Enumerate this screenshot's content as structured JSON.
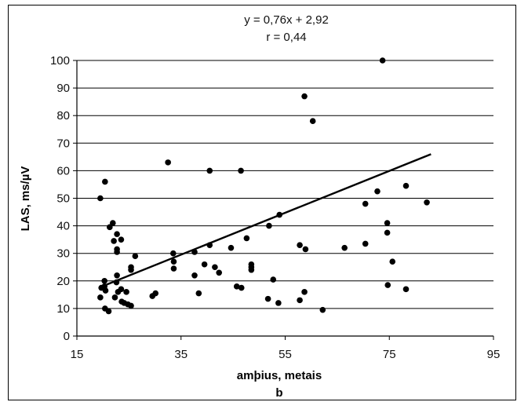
{
  "chart_data": {
    "type": "scatter",
    "title": "",
    "annotations": [
      "y = 0,76x + 2,92",
      "r = 0,44"
    ],
    "xlabel": "amþius, metais",
    "ylabel": "LAS, ms/µV",
    "caption": "b",
    "xlim": [
      15,
      95
    ],
    "ylim": [
      0,
      100
    ],
    "xticks": [
      "15",
      "35",
      "55",
      "75",
      "95"
    ],
    "yticks": [
      "0",
      "10",
      "20",
      "30",
      "40",
      "50",
      "60",
      "70",
      "80",
      "90",
      "100"
    ],
    "grid": "horizontal",
    "legend": "none",
    "trendline": {
      "slope": 0.76,
      "intercept": 2.92,
      "x_start": 20.7,
      "x_end": 83
    },
    "series": [
      {
        "color": "#000000",
        "points": [
          [
            19.5,
            50
          ],
          [
            19.5,
            14
          ],
          [
            19.7,
            17.5
          ],
          [
            20.4,
            56
          ],
          [
            20.3,
            20
          ],
          [
            20.3,
            18
          ],
          [
            20.5,
            16.5
          ],
          [
            20.4,
            10
          ],
          [
            21.1,
            9
          ],
          [
            21.3,
            39.5
          ],
          [
            21.9,
            41
          ],
          [
            22.1,
            34.5
          ],
          [
            22.7,
            37
          ],
          [
            22.7,
            31.5
          ],
          [
            22.7,
            30.5
          ],
          [
            22.3,
            14
          ],
          [
            22.6,
            19.5
          ],
          [
            22.7,
            22
          ],
          [
            22.9,
            16
          ],
          [
            23.5,
            35
          ],
          [
            23.5,
            17
          ],
          [
            23.6,
            12.5
          ],
          [
            24.1,
            12
          ],
          [
            24.5,
            16
          ],
          [
            24.8,
            11.5
          ],
          [
            25.4,
            11
          ],
          [
            25.4,
            24
          ],
          [
            25.4,
            25
          ],
          [
            26.2,
            29
          ],
          [
            29.5,
            14.5
          ],
          [
            30.1,
            15.5
          ],
          [
            32.5,
            63
          ],
          [
            33.5,
            30
          ],
          [
            33.6,
            27
          ],
          [
            33.6,
            24.5
          ],
          [
            37.6,
            30.5
          ],
          [
            37.6,
            22
          ],
          [
            38.4,
            15.5
          ],
          [
            39.5,
            26
          ],
          [
            40.5,
            60
          ],
          [
            40.5,
            33
          ],
          [
            41.5,
            25
          ],
          [
            42.3,
            23
          ],
          [
            44.6,
            32
          ],
          [
            45.7,
            18
          ],
          [
            46.5,
            60
          ],
          [
            46.6,
            17.5
          ],
          [
            47.6,
            35.5
          ],
          [
            48.5,
            26
          ],
          [
            48.5,
            25
          ],
          [
            48.5,
            24
          ],
          [
            51.7,
            13.5
          ],
          [
            51.9,
            40
          ],
          [
            52.7,
            20.5
          ],
          [
            53.7,
            12
          ],
          [
            53.9,
            44
          ],
          [
            57.8,
            33
          ],
          [
            57.8,
            13
          ],
          [
            58.7,
            87
          ],
          [
            58.7,
            16
          ],
          [
            58.9,
            31.5
          ],
          [
            60.3,
            78
          ],
          [
            62.2,
            9.5
          ],
          [
            66.4,
            32
          ],
          [
            70.4,
            48
          ],
          [
            70.4,
            33.5
          ],
          [
            72.7,
            52.5
          ],
          [
            73.7,
            100
          ],
          [
            74.6,
            41
          ],
          [
            74.6,
            37.5
          ],
          [
            74.7,
            18.5
          ],
          [
            75.6,
            27
          ],
          [
            78.2,
            54.5
          ],
          [
            78.2,
            17
          ],
          [
            82.2,
            48.5
          ]
        ]
      }
    ]
  }
}
